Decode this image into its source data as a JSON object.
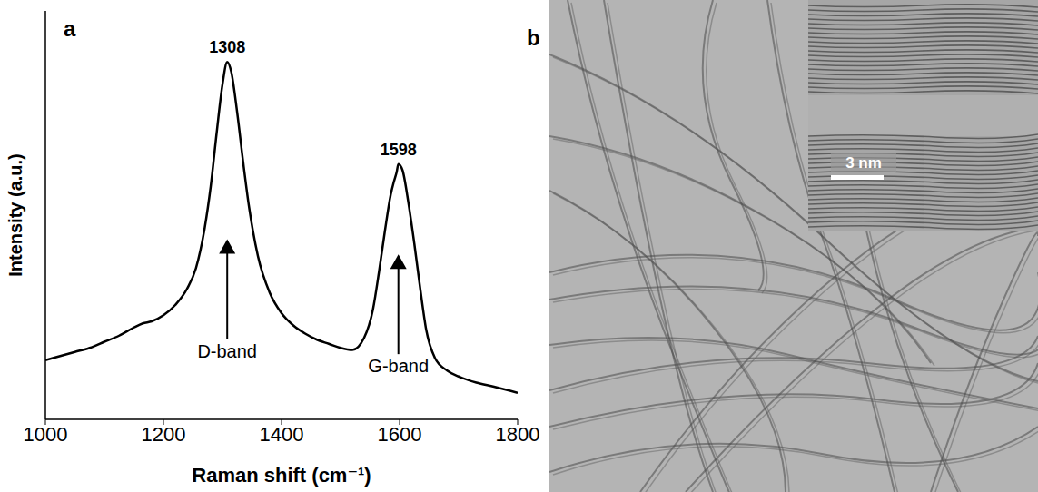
{
  "chart_data": {
    "type": "line",
    "panel": "a",
    "xlabel": "Raman shift (cm⁻¹)",
    "ylabel": "Intensity (a.u.)",
    "x": [
      1000,
      1025,
      1050,
      1075,
      1100,
      1125,
      1150,
      1165,
      1180,
      1200,
      1220,
      1240,
      1255,
      1270,
      1280,
      1290,
      1300,
      1308,
      1315,
      1325,
      1335,
      1345,
      1360,
      1380,
      1400,
      1420,
      1440,
      1460,
      1480,
      1500,
      1520,
      1540,
      1555,
      1565,
      1575,
      1585,
      1590,
      1595,
      1598,
      1605,
      1615,
      1625,
      1635,
      1645,
      1660,
      1680,
      1700,
      1730,
      1760,
      1800
    ],
    "values": [
      14.5,
      15.5,
      16.5,
      17.5,
      19,
      20.5,
      22.5,
      23.5,
      24,
      25.5,
      28,
      32,
      37,
      47,
      57,
      70,
      82,
      87.5,
      85,
      75,
      63,
      52,
      40,
      31,
      26,
      23,
      21,
      19.5,
      18.5,
      17.5,
      17,
      20,
      27,
      36,
      46,
      55,
      58,
      60.5,
      62.5,
      61,
      53,
      43,
      32,
      22,
      15,
      12,
      10.5,
      9,
      8,
      6.5
    ],
    "color": "#000000",
    "xlim": [
      1000,
      1800
    ],
    "xticks": [
      1000,
      1200,
      1400,
      1600,
      1800
    ],
    "ylim": [
      0,
      100
    ],
    "tick_labels": "x",
    "grid": false,
    "annotations": [
      {
        "text": "1308",
        "x": 1308,
        "y": 87.5
      },
      {
        "text": "1598",
        "x": 1598,
        "y": 62.5
      },
      {
        "text": "D-band",
        "x": 1308,
        "y": 17,
        "arrow": "up"
      },
      {
        "text": "G-band",
        "x": 1598,
        "y": 13.3,
        "arrow": "up"
      }
    ]
  },
  "image_panel": {
    "panel": "b",
    "scale_bar": "3 nm"
  }
}
